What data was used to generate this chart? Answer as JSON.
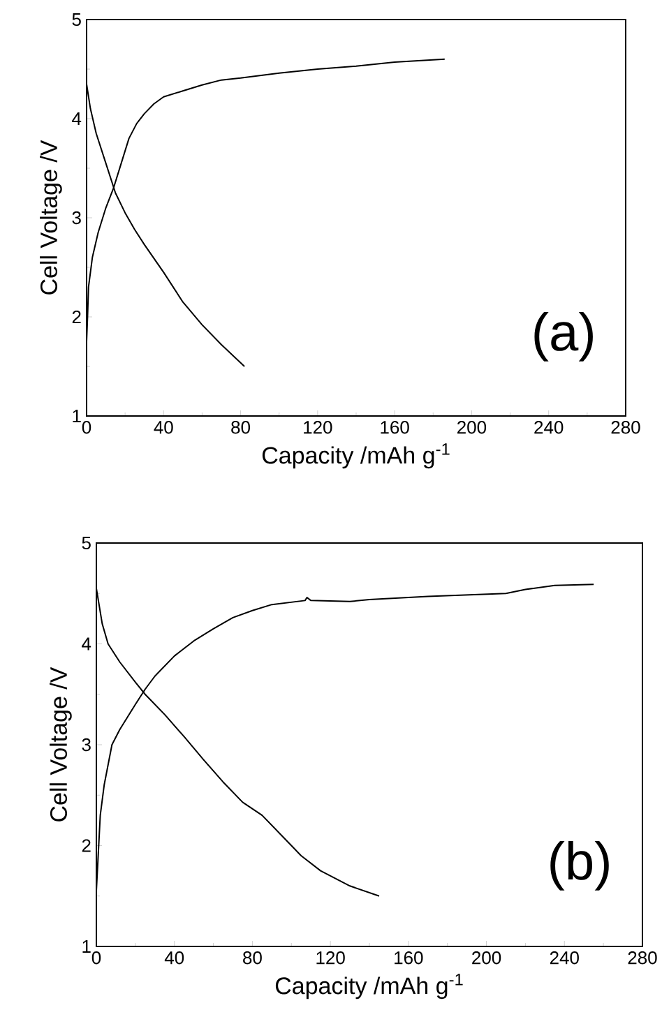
{
  "chart_data": [
    {
      "type": "line",
      "xlabel": "Capacity /mAh g$^{-1}$",
      "ylabel": "Cell Voltage /V",
      "xlim": [
        0,
        280
      ],
      "xticks": [
        0,
        40,
        80,
        120,
        160,
        200,
        240,
        280
      ],
      "ylim": [
        1,
        5
      ],
      "yticks": [
        1,
        2,
        3,
        4,
        5
      ],
      "line_style": "solid",
      "annotations": [
        "(a)"
      ],
      "series": [
        {
          "color": "#000000",
          "x": [
            0,
            0.5,
            1,
            3,
            6,
            10,
            14,
            18,
            22,
            26,
            30,
            35,
            40,
            50,
            60,
            70,
            80,
            100,
            120,
            140,
            160,
            186
          ],
          "values": [
            1.75,
            2.0,
            2.3,
            2.6,
            2.85,
            3.1,
            3.3,
            3.55,
            3.8,
            3.95,
            4.05,
            4.15,
            4.22,
            4.28,
            4.34,
            4.39,
            4.41,
            4.46,
            4.5,
            4.53,
            4.57,
            4.6
          ]
        },
        {
          "color": "#000000",
          "x": [
            0,
            2,
            5,
            10,
            15,
            20,
            25,
            30,
            40,
            50,
            60,
            70,
            82
          ],
          "values": [
            4.35,
            4.1,
            3.85,
            3.55,
            3.25,
            3.05,
            2.88,
            2.73,
            2.45,
            2.15,
            1.92,
            1.72,
            1.5
          ]
        }
      ]
    },
    {
      "type": "line",
      "xlabel": "Capacity /mAh g$^{-1}$",
      "ylabel": "Cell Voltage /V",
      "xlim": [
        0,
        280
      ],
      "xticks": [
        0,
        40,
        80,
        120,
        160,
        200,
        240,
        280
      ],
      "ylim": [
        1,
        5
      ],
      "yticks": [
        1,
        2,
        3,
        4,
        5
      ],
      "line_style": "solid",
      "annotations": [
        "(b)"
      ],
      "series": [
        {
          "color": "#000000",
          "x": [
            0,
            2,
            4,
            8,
            12,
            20,
            25,
            30,
            40,
            50,
            60,
            70,
            80,
            90,
            107,
            108,
            110,
            130,
            140,
            170,
            210,
            220,
            235,
            255
          ],
          "values": [
            1.55,
            2.3,
            2.6,
            3.0,
            3.15,
            3.4,
            3.55,
            3.68,
            3.88,
            4.03,
            4.15,
            4.26,
            4.33,
            4.39,
            4.43,
            4.46,
            4.43,
            4.42,
            4.44,
            4.47,
            4.5,
            4.54,
            4.58,
            4.59
          ]
        },
        {
          "color": "#000000",
          "x": [
            0,
            3,
            6,
            12,
            20,
            25,
            35,
            45,
            55,
            65,
            75,
            85,
            95,
            105,
            115,
            130,
            145
          ],
          "values": [
            4.55,
            4.2,
            4.0,
            3.82,
            3.62,
            3.5,
            3.3,
            3.08,
            2.85,
            2.63,
            2.43,
            2.3,
            2.1,
            1.9,
            1.75,
            1.6,
            1.5
          ]
        }
      ]
    }
  ]
}
